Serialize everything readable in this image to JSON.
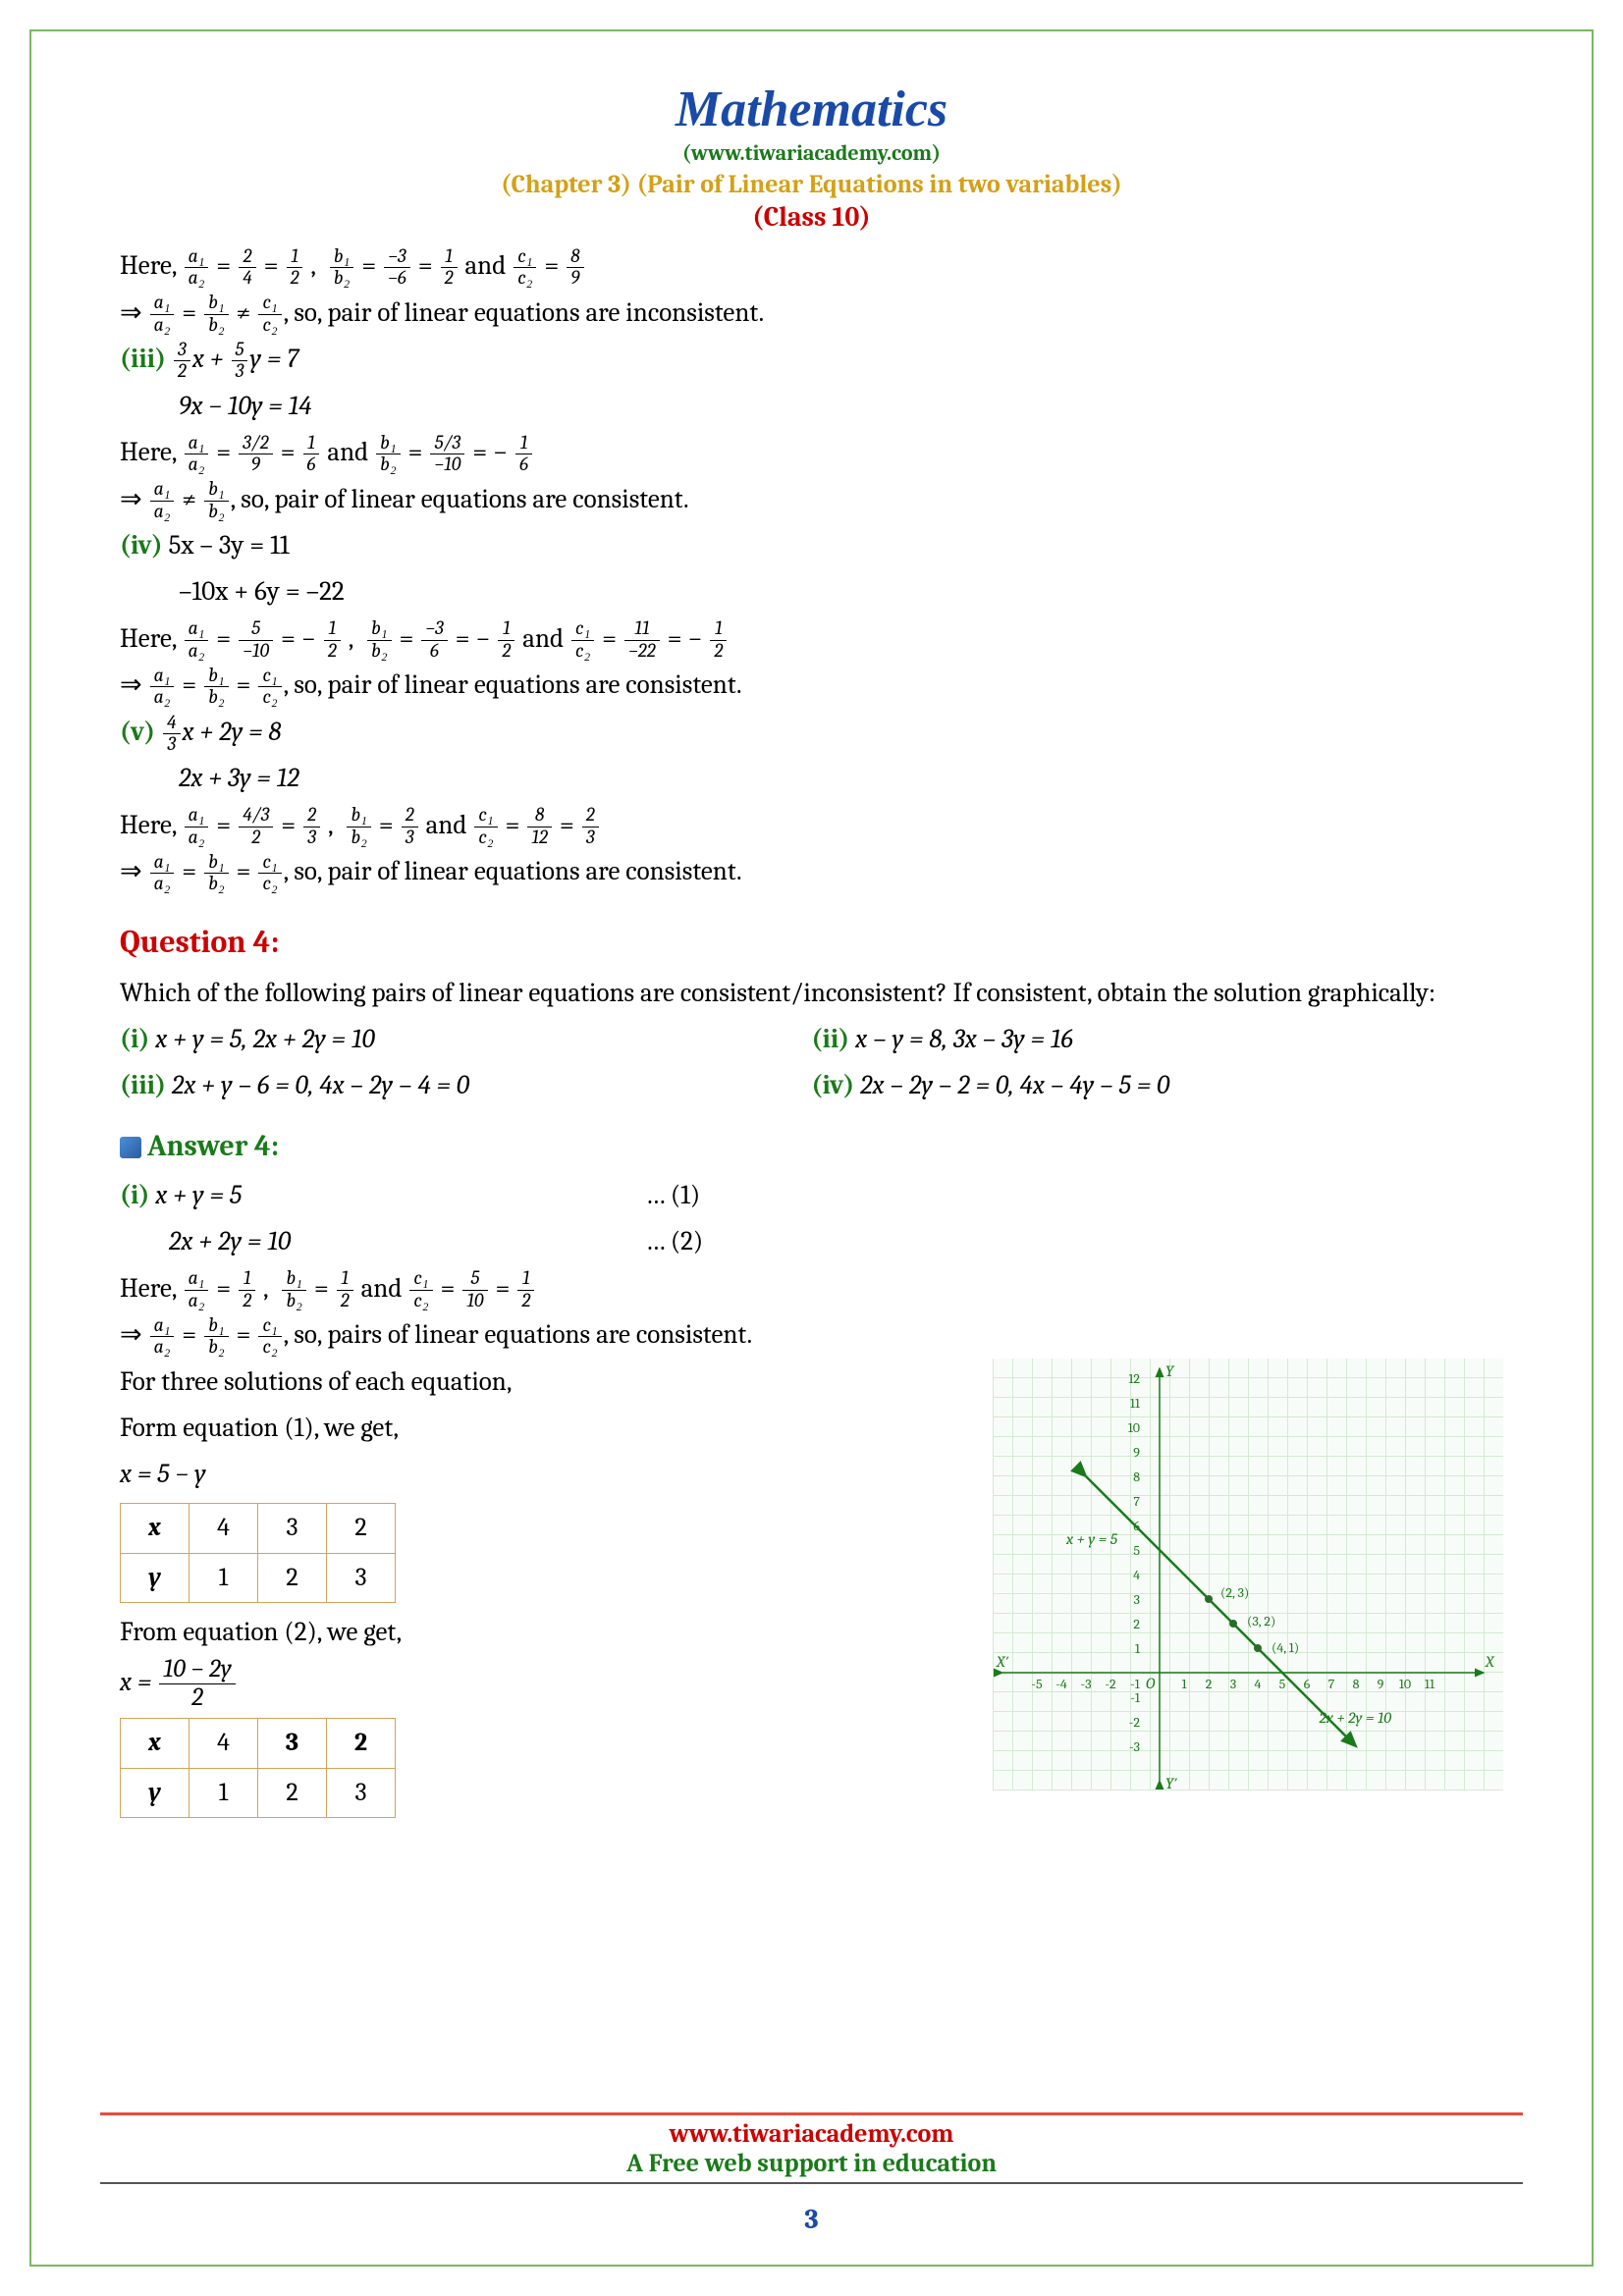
{
  "page": {
    "title": "Mathematics",
    "url": "(www.tiwariacademy.com)",
    "chapter": "(Chapter 3) (Pair of Linear Equations in two variables)",
    "class": "(Class 10)",
    "number": "3"
  },
  "footer": {
    "url": "www.tiwariacademy.com",
    "tag": "A Free web support in education"
  },
  "sec_ii": {
    "here": "Here,  ",
    "a": {
      "n": "a₁",
      "d": "a₂"
    },
    "a_eq1": {
      "n": "2",
      "d": "4"
    },
    "a_eq2": {
      "n": "1",
      "d": "2"
    },
    "b": {
      "n": "b₁",
      "d": "b₂"
    },
    "b_eq1": {
      "n": "−3",
      "d": "−6"
    },
    "b_eq2": {
      "n": "1",
      "d": "2"
    },
    "and": " and ",
    "c": {
      "n": "c₁",
      "d": "c₂"
    },
    "c_eq1": {
      "n": "8",
      "d": "9"
    },
    "conc": ", so, pair of linear equations are inconsistent."
  },
  "sec_iii": {
    "label": "(iii) ",
    "eq1a": {
      "n": "3",
      "d": "2"
    },
    "eq1mid": "x + ",
    "eq1b": {
      "n": "5",
      "d": "3"
    },
    "eq1end": "y = 7",
    "eq2": "9x − 10y = 14",
    "here": "Here,  ",
    "a": {
      "n": "a₁",
      "d": "a₂"
    },
    "a_eq1": {
      "n": "3/2",
      "d": "9"
    },
    "a_eq2": {
      "n": "1",
      "d": "6"
    },
    "and": " and ",
    "b": {
      "n": "b₁",
      "d": "b₂"
    },
    "b_eq1": {
      "n": "5/3",
      "d": "−10"
    },
    "b_eq2pre": " = − ",
    "b_eq2": {
      "n": "1",
      "d": "6"
    },
    "conc": ", so, pair of linear equations are consistent."
  },
  "sec_iv": {
    "label": "(iv) ",
    "eq1": "5x – 3y = 11",
    "eq2": "–10x + 6y = –22",
    "here": "Here,  ",
    "a": {
      "n": "a₁",
      "d": "a₂"
    },
    "a_eq1": {
      "n": "5",
      "d": "−10"
    },
    "a_eq2pre": " = − ",
    "a_eq2": {
      "n": "1",
      "d": "2"
    },
    "b": {
      "n": "b₁",
      "d": "b₂"
    },
    "b_eq1": {
      "n": "−3",
      "d": "6"
    },
    "b_eq2pre": " = − ",
    "b_eq2": {
      "n": "1",
      "d": "2"
    },
    "and": " and ",
    "c": {
      "n": "c₁",
      "d": "c₂"
    },
    "c_eq1": {
      "n": "11",
      "d": "−22"
    },
    "c_eq2pre": " = − ",
    "c_eq2": {
      "n": "1",
      "d": "2"
    },
    "conc": ", so, pair of linear equations are consistent."
  },
  "sec_v": {
    "label": "(v) ",
    "eq1a": {
      "n": "4",
      "d": "3"
    },
    "eq1end": "x + 2y = 8",
    "eq2": "2x + 3y = 12",
    "here": "Here,  ",
    "a": {
      "n": "a₁",
      "d": "a₂"
    },
    "a_eq1": {
      "n": "4/3",
      "d": "2"
    },
    "a_eq2": {
      "n": "2",
      "d": "3"
    },
    "b": {
      "n": "b₁",
      "d": "b₂"
    },
    "b_eq1": {
      "n": "2",
      "d": "3"
    },
    "and": " and ",
    "c": {
      "n": "c₁",
      "d": "c₂"
    },
    "c_eq1": {
      "n": "8",
      "d": "12"
    },
    "c_eq2": {
      "n": "2",
      "d": "3"
    },
    "conc": ", so, pair of linear equations are consistent."
  },
  "q4": {
    "heading": "Question 4:",
    "text": "Which of the following pairs of linear equations are consistent/inconsistent? If consistent, obtain the solution graphically:",
    "i_label": "(i) ",
    "i": "x + y = 5, 2x + 2y = 10",
    "ii_label": "(ii) ",
    "ii": "x – y = 8, 3x – 3y = 16",
    "iii_label": "(iii) ",
    "iii": "2x + y – 6 = 0, 4x – 2y – 4 = 0",
    "iv_label": "(iv) ",
    "iv": "2x – 2y – 2 = 0, 4x – 4y – 5 = 0"
  },
  "a4": {
    "heading": "Answer 4:",
    "i_label": "(i)  ",
    "eq1": "x + y = 5",
    "eq1_tag": "… (1)",
    "eq2": "2x + 2y = 10",
    "eq2_tag": "… (2)",
    "here": "Here,   ",
    "a": {
      "n": "a₁",
      "d": "a₂"
    },
    "a_eq": {
      "n": "1",
      "d": "2"
    },
    "b": {
      "n": "b₁",
      "d": "b₂"
    },
    "b_eq": {
      "n": "1",
      "d": "2"
    },
    "and": " and ",
    "c": {
      "n": "c₁",
      "d": "c₂"
    },
    "c_eq1": {
      "n": "5",
      "d": "10"
    },
    "c_eq2": {
      "n": "1",
      "d": "2"
    },
    "conc": ", so, pairs of linear equations are consistent.",
    "sol_intro": "For three solutions of each equation,",
    "form1": "Form equation (1), we get,",
    "expr1": "x = 5 − y",
    "form2": "From equation (2), we get,",
    "expr2_num": "10 − 2y",
    "expr2_den": "2",
    "expr2_pre": "x = ",
    "table1": {
      "headers": [
        "x",
        "y"
      ],
      "row_x": [
        "4",
        "3",
        "2"
      ],
      "row_y": [
        "1",
        "2",
        "3"
      ]
    },
    "table2": {
      "headers": [
        "x",
        "y"
      ],
      "row_x": [
        "4",
        "3",
        "2"
      ],
      "row_y": [
        "1",
        "2",
        "3"
      ]
    }
  },
  "graph": {
    "colors": {
      "grid": "#d4e8d4",
      "axis": "#1a7a1a",
      "line": "#1a7a1a",
      "text": "#1a7a1a",
      "point": "#2a6a2a"
    },
    "labels": {
      "Y": "Y",
      "Yp": "Y′",
      "X": "X",
      "Xp": "X′",
      "O": "O",
      "line1": "x + y = 5",
      "line2": "2x + 2y = 10",
      "p1": "(2, 3)",
      "p2": "(3, 2)",
      "p3": "(4, 1)"
    },
    "x_ticks": [
      "-5",
      "-4",
      "-3",
      "-2",
      "-1",
      "1",
      "2",
      "3",
      "4",
      "5",
      "6",
      "7",
      "8",
      "9",
      "10",
      "11"
    ],
    "y_ticks_pos": [
      "1",
      "2",
      "3",
      "4",
      "5",
      "6",
      "7",
      "8",
      "9",
      "10",
      "11",
      "12"
    ],
    "y_ticks_neg": [
      "-1",
      "-2",
      "-3"
    ]
  }
}
